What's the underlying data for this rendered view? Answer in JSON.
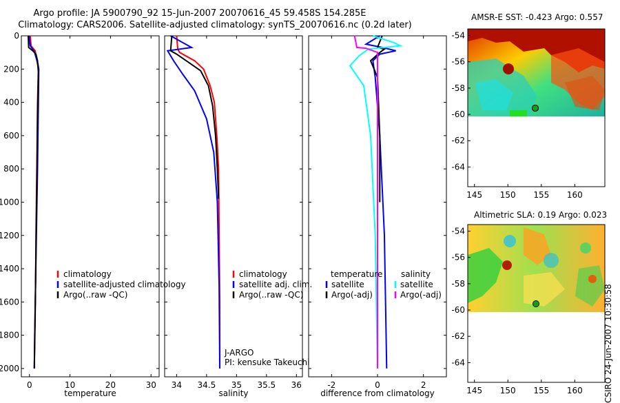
{
  "header": {
    "title_line1": "Argo profile: JA 5900790_92 15-Jun-2007 20070616_45 59.458S 154.285E",
    "title_line2": "Climatology: CARS2006. Satellite-adjusted climatology: synTS_20070616.nc (0.2d later)"
  },
  "credit": "CSIRO 24-Jun-2007 10:30:58",
  "colors": {
    "red": "#ff0000",
    "blue": "#0000ff",
    "black": "#000000",
    "cyan": "#00ffff",
    "magenta": "#ff00ff"
  },
  "chart_data": [
    {
      "id": "temperature",
      "type": "line",
      "xlabel": "temperature",
      "xlim": [
        -2,
        32
      ],
      "ylim": [
        2050,
        0
      ],
      "xticks": [
        0,
        10,
        20,
        30
      ],
      "yticks": [
        0,
        200,
        400,
        600,
        800,
        1000,
        1200,
        1400,
        1600,
        1800,
        2000
      ],
      "series": [
        {
          "name": "climatology",
          "color": "red",
          "x": [
            0.2,
            0.4,
            1.4,
            2.0,
            2.2,
            2.0,
            1.8,
            1.6,
            1.5,
            1.3,
            1.2
          ],
          "y": [
            0,
            60,
            90,
            170,
            200,
            400,
            800,
            1200,
            1500,
            1800,
            2000
          ]
        },
        {
          "name": "satellite-adjusted climatology",
          "color": "blue",
          "x": [
            -0.1,
            0.2,
            1.2,
            2.1,
            2.3,
            2.2,
            2.0,
            1.7,
            1.5,
            1.3,
            1.2
          ],
          "y": [
            0,
            60,
            95,
            170,
            200,
            400,
            800,
            1200,
            1500,
            1800,
            2000
          ]
        },
        {
          "name": "Argo(..raw -QC)",
          "color": "black",
          "x": [
            -0.3,
            -0.2,
            0.8,
            1.6,
            2.0,
            2.2,
            2.0,
            1.8,
            1.6,
            1.4,
            1.2
          ],
          "y": [
            0,
            70,
            90,
            110,
            150,
            220,
            500,
            900,
            1300,
            1700,
            2000
          ]
        }
      ],
      "legend": [
        "climatology",
        "satellite-adjusted climatology",
        "Argo(..raw -QC)"
      ]
    },
    {
      "id": "salinity",
      "type": "line",
      "xlabel": "salinity",
      "xlim": [
        33.8,
        36.1
      ],
      "ylim": [
        2050,
        0
      ],
      "xticks": [
        34,
        34.5,
        35,
        35.5,
        36
      ],
      "xticklabels": [
        "34",
        "34.5",
        "35",
        "35.5",
        "36"
      ],
      "yticks": [
        0,
        200,
        400,
        600,
        800,
        1000,
        1200,
        1400,
        1600,
        1800,
        2000
      ],
      "series": [
        {
          "name": "climatology",
          "color": "red",
          "x": [
            34.0,
            34.02,
            34.05,
            34.3,
            34.45,
            34.56,
            34.63,
            34.67,
            34.7,
            34.71,
            34.72,
            34.72
          ],
          "y": [
            0,
            80,
            100,
            150,
            200,
            300,
            400,
            600,
            800,
            1200,
            1600,
            2000
          ]
        },
        {
          "name": "satellite adj. clim.",
          "color": "blue",
          "x": [
            33.9,
            34.1,
            34.25,
            33.85,
            33.95,
            34.1,
            34.3,
            34.5,
            34.62,
            34.68,
            34.71,
            34.72
          ],
          "y": [
            0,
            40,
            70,
            90,
            150,
            230,
            330,
            500,
            700,
            1000,
            1500,
            2000
          ]
        },
        {
          "name": "Argo(..raw -QC)",
          "color": "black",
          "x": [
            33.92,
            33.9,
            34.0,
            34.2,
            34.4,
            34.53,
            34.6,
            34.65,
            34.68,
            34.7
          ],
          "y": [
            0,
            90,
            110,
            160,
            210,
            300,
            420,
            600,
            800,
            980
          ]
        }
      ],
      "legend": [
        "climatology",
        "satellite adj. clim.",
        "Argo(..raw -QC)"
      ],
      "annotations": [
        "J-ARGO",
        "PI: kensuke Takeuchi"
      ]
    },
    {
      "id": "difference",
      "type": "line",
      "xlabel": "difference from climatology",
      "xlim": [
        -3,
        3
      ],
      "ylim": [
        2050,
        0
      ],
      "xticks": [
        -2,
        0,
        2
      ],
      "yticks": [
        0,
        200,
        400,
        600,
        800,
        1000,
        1200,
        1400,
        1600,
        1800,
        2000
      ],
      "series": [
        {
          "name": "temperature satellite",
          "color": "blue",
          "x": [
            0.1,
            -0.5,
            0.2,
            0.8,
            0.1,
            -0.2,
            -0.1,
            0.1,
            0.3,
            0.4
          ],
          "y": [
            0,
            50,
            70,
            90,
            110,
            150,
            250,
            600,
            1200,
            2000
          ]
        },
        {
          "name": "temperature Argo(-adj)",
          "color": "black",
          "x": [
            0.2,
            0.0,
            0.3,
            0.1,
            -0.3,
            0.0,
            0.1,
            0.1
          ],
          "y": [
            0,
            70,
            80,
            100,
            150,
            250,
            600,
            1000
          ]
        },
        {
          "name": "salinity satellite",
          "color": "cyan",
          "x": [
            -0.2,
            0.7,
            1.0,
            -0.4,
            -0.8,
            -1.2,
            -0.6,
            -0.3,
            -0.1,
            0.0
          ],
          "y": [
            0,
            40,
            60,
            80,
            120,
            180,
            300,
            600,
            1200,
            2000
          ]
        },
        {
          "name": "salinity Argo(-adj)",
          "color": "magenta",
          "x": [
            -1.0,
            -0.9,
            -0.5,
            0.0,
            0.0,
            0.0
          ],
          "y": [
            0,
            70,
            75,
            100,
            500,
            2000
          ]
        }
      ],
      "legend_headers": [
        "temperature",
        "salinity"
      ],
      "legend_left": [
        "satellite",
        "Argo(-adj)"
      ],
      "legend_right": [
        "satellite",
        "Argo(-adj)"
      ]
    },
    {
      "id": "sst_map",
      "type": "heatmap",
      "title": "AMSR-E SST: -0.423 Argo: 0.557",
      "xlim": [
        144,
        164.5
      ],
      "ylim": [
        -65.5,
        -53.5
      ],
      "xticks": [
        145,
        150,
        155,
        160
      ],
      "yticks": [
        -54,
        -56,
        -58,
        -60,
        -62,
        -64
      ],
      "data_extent_lat": [
        -60,
        -53.5
      ],
      "float_position": [
        154.285,
        -59.458
      ]
    },
    {
      "id": "sla_map",
      "type": "heatmap",
      "title": "Altimetric SLA: 0.19 Argo: 0.023",
      "xlim": [
        144,
        164.5
      ],
      "ylim": [
        -65.5,
        -53.5
      ],
      "xticks": [
        145,
        150,
        155,
        160
      ],
      "yticks": [
        -54,
        -56,
        -58,
        -60,
        -62,
        -64
      ],
      "data_extent_lat": [
        -60,
        -53.5
      ],
      "float_position": [
        154.285,
        -59.458
      ]
    }
  ]
}
